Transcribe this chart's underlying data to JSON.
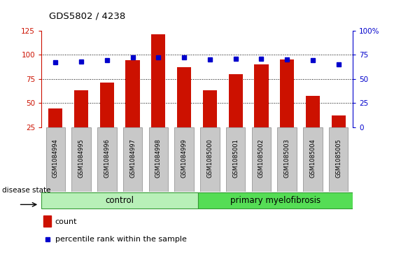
{
  "title": "GDS5802 / 4238",
  "samples": [
    "GSM1084994",
    "GSM1084995",
    "GSM1084996",
    "GSM1084997",
    "GSM1084998",
    "GSM1084999",
    "GSM1085000",
    "GSM1085001",
    "GSM1085002",
    "GSM1085003",
    "GSM1085004",
    "GSM1085005"
  ],
  "counts": [
    44,
    63,
    71,
    94,
    121,
    87,
    63,
    80,
    90,
    95,
    57,
    37
  ],
  "percentile_ranks": [
    67,
    68,
    69,
    72,
    72,
    72,
    70,
    71,
    71,
    70,
    69,
    65
  ],
  "ylim_left": [
    25,
    125
  ],
  "ylim_right": [
    0,
    100
  ],
  "yticks_left": [
    25,
    50,
    75,
    100,
    125
  ],
  "yticks_right": [
    0,
    25,
    50,
    75,
    100
  ],
  "bar_color": "#cc1100",
  "marker_color": "#0000cc",
  "tick_bg_color": "#c8c8c8",
  "control_bg": "#b8f0b8",
  "myelofibrosis_bg": "#55dd55",
  "legend_count": "count",
  "legend_percentile": "percentile rank within the sample",
  "grid_dotted_at": [
    50,
    75,
    100
  ]
}
